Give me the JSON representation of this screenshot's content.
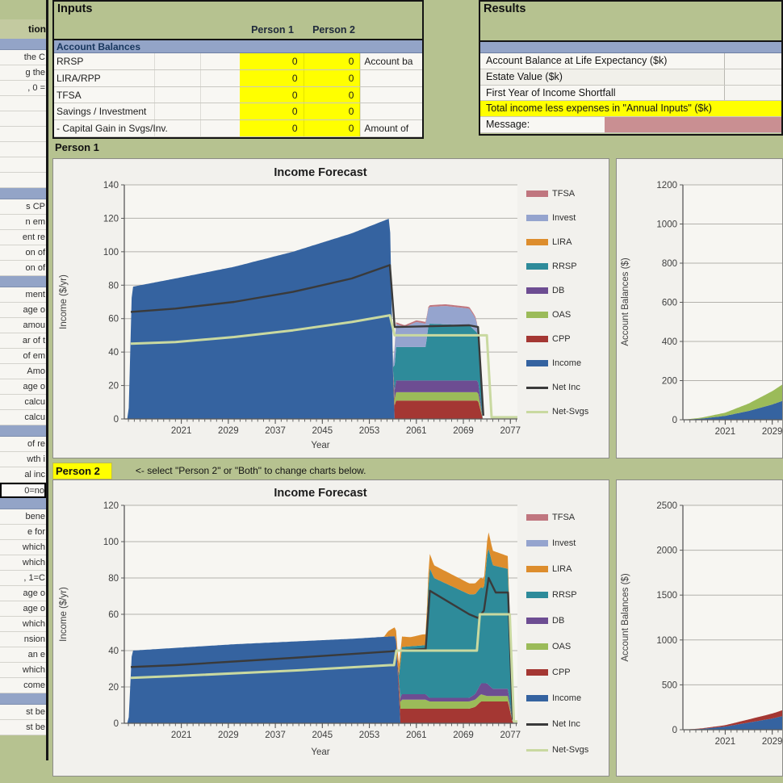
{
  "palette": {
    "page_green": "#b6c290",
    "band_blue": "#93a4c7",
    "input_yellow": "#ffff00",
    "message_pink": "#c98f92",
    "cell_white": "#f8f7f3",
    "table_border": "#141414",
    "grid_line": "#b3b1ac",
    "axis_line": "#5a5a5a"
  },
  "sidebar": {
    "rows": [
      {
        "kind": "green",
        "text": "",
        "h": 24
      },
      {
        "kind": "head",
        "text": "tion",
        "h": 24
      },
      {
        "kind": "band",
        "text": "",
        "h": 14
      },
      {
        "kind": "cell",
        "text": "the C",
        "h": 19
      },
      {
        "kind": "cell",
        "text": "g the",
        "h": 19
      },
      {
        "kind": "cell",
        "text": ", 0 =",
        "h": 19
      },
      {
        "kind": "cell",
        "text": "",
        "h": 19
      },
      {
        "kind": "cell",
        "text": "",
        "h": 19
      },
      {
        "kind": "cell",
        "text": "",
        "h": 19
      },
      {
        "kind": "cell",
        "text": "",
        "h": 19
      },
      {
        "kind": "cell",
        "text": "",
        "h": 19
      },
      {
        "kind": "cell",
        "text": "",
        "h": 19
      },
      {
        "kind": "band",
        "text": "",
        "h": 14
      },
      {
        "kind": "cell",
        "text": "s CP",
        "h": 19
      },
      {
        "kind": "cell",
        "text": "n em",
        "h": 19
      },
      {
        "kind": "cell",
        "text": "ent re",
        "h": 19
      },
      {
        "kind": "cell",
        "text": "on of",
        "h": 19
      },
      {
        "kind": "cell",
        "text": "on of",
        "h": 19
      },
      {
        "kind": "band",
        "text": "",
        "h": 14
      },
      {
        "kind": "cell",
        "text": "ment",
        "h": 19
      },
      {
        "kind": "cell",
        "text": "age o",
        "h": 19
      },
      {
        "kind": "cell",
        "text": "amou",
        "h": 19
      },
      {
        "kind": "cell",
        "text": "ar of t",
        "h": 19
      },
      {
        "kind": "cell",
        "text": "of em",
        "h": 19
      },
      {
        "kind": "cell",
        "text": "Amo",
        "h": 19
      },
      {
        "kind": "cell",
        "text": "age o",
        "h": 19
      },
      {
        "kind": "cell",
        "text": "calcu",
        "h": 19
      },
      {
        "kind": "cell",
        "text": "calcu",
        "h": 19
      },
      {
        "kind": "band",
        "text": "",
        "h": 14
      },
      {
        "kind": "cell",
        "text": "of re",
        "h": 19
      },
      {
        "kind": "cell",
        "text": "wth i",
        "h": 19
      },
      {
        "kind": "cell",
        "text": "al inc",
        "h": 19
      },
      {
        "kind": "sel",
        "text": "0=no",
        "h": 19
      },
      {
        "kind": "band",
        "text": "",
        "h": 14
      },
      {
        "kind": "cell",
        "text": "bene",
        "h": 19
      },
      {
        "kind": "cell",
        "text": "e for",
        "h": 19
      },
      {
        "kind": "cell",
        "text": "which",
        "h": 19
      },
      {
        "kind": "cell",
        "text": "which",
        "h": 19
      },
      {
        "kind": "cell",
        "text": ", 1=C",
        "h": 19
      },
      {
        "kind": "cell",
        "text": "age o",
        "h": 19
      },
      {
        "kind": "cell",
        "text": "age o",
        "h": 19
      },
      {
        "kind": "cell",
        "text": "which",
        "h": 19
      },
      {
        "kind": "cell",
        "text": "nsion",
        "h": 19
      },
      {
        "kind": "cell",
        "text": "an e",
        "h": 19
      },
      {
        "kind": "cell",
        "text": "which",
        "h": 19
      },
      {
        "kind": "cell",
        "text": "come",
        "h": 19
      },
      {
        "kind": "band",
        "text": "",
        "h": 14
      },
      {
        "kind": "cell",
        "text": "st be",
        "h": 19
      },
      {
        "kind": "cell",
        "text": "st be",
        "h": 19
      }
    ]
  },
  "inputs": {
    "title": "Inputs",
    "col_headers": [
      "Person 1",
      "Person 2"
    ],
    "section_header": "Account Balances",
    "rows": [
      {
        "label": "RRSP",
        "p1": "0",
        "p2": "0",
        "note": "Account ba"
      },
      {
        "label": "LIRA/RPP",
        "p1": "0",
        "p2": "0",
        "note": ""
      },
      {
        "label": "TFSA",
        "p1": "0",
        "p2": "0",
        "note": ""
      },
      {
        "label": "Savings / Investment",
        "p1": "0",
        "p2": "0",
        "note": ""
      },
      {
        "label": " - Capital Gain in Svgs/Inv.",
        "p1": "0",
        "p2": "0",
        "note": "Amount of"
      }
    ]
  },
  "results": {
    "title": "Results",
    "rows": [
      {
        "label": "Account Balance at Life Expectancy ($k)",
        "type": "value"
      },
      {
        "label": "Estate Value ($k)",
        "type": "value"
      },
      {
        "label": "First Year of Income Shortfall",
        "type": "value"
      },
      {
        "label": "Total income less expenses in \"Annual Inputs\" ($k)",
        "type": "yellow"
      },
      {
        "label": "Message:",
        "type": "message"
      }
    ]
  },
  "sections": {
    "person1_label": "Person 1",
    "person2_label": "Person 2",
    "person2_note": "<- select \"Person 2\" or \"Both\" to change charts below."
  },
  "legend": [
    {
      "name": "TFSA",
      "color": "#c0767f",
      "line": false
    },
    {
      "name": "Invest",
      "color": "#95a4ce",
      "line": false
    },
    {
      "name": "LIRA",
      "color": "#dd8d2d",
      "line": false
    },
    {
      "name": "RRSP",
      "color": "#2e8b9a",
      "line": false
    },
    {
      "name": "DB",
      "color": "#6d4d92",
      "line": false
    },
    {
      "name": "OAS",
      "color": "#9bbb59",
      "line": false
    },
    {
      "name": "CPP",
      "color": "#a43733",
      "line": false
    },
    {
      "name": "Income",
      "color": "#3563a0",
      "line": false
    },
    {
      "name": "Net Inc",
      "color": "#3a3a3a",
      "line": true
    },
    {
      "name": "Net-Svgs",
      "color": "#c9d9a0",
      "line": true
    }
  ],
  "chart_data": [
    {
      "id": "p1_income",
      "type": "area",
      "title": "Income Forecast",
      "xlabel": "Year",
      "ylabel": "Income ($/yr)",
      "xlim": [
        2011.3,
        2078.2
      ],
      "ylim": [
        0,
        140
      ],
      "x_ticks": [
        2021,
        2029,
        2037,
        2045,
        2053,
        2061,
        2069,
        2077
      ],
      "y_ticks": [
        0,
        20,
        40,
        60,
        80,
        100,
        120,
        140
      ],
      "series": [
        {
          "name": "Income",
          "color": "#3563a0",
          "x": [
            2012.0,
            2012.6,
            2020,
            2030,
            2040,
            2050,
            2056.5,
            2057.2
          ],
          "v": [
            0,
            79,
            84,
            91,
            100,
            111,
            120,
            0
          ]
        },
        {
          "name": "CPP",
          "color": "#a43733",
          "x": [
            2057,
            2057.4,
            2071.5,
            2072.3
          ],
          "v": [
            0,
            11,
            11,
            0
          ]
        },
        {
          "name": "OAS",
          "color": "#9bbb59",
          "x": [
            2057,
            2057.4,
            2071.5,
            2072.3
          ],
          "v": [
            0,
            5,
            5,
            0
          ]
        },
        {
          "name": "DB",
          "color": "#6d4d92",
          "x": [
            2057,
            2057.4,
            2071.5,
            2072.3
          ],
          "v": [
            0,
            7,
            7,
            0
          ]
        },
        {
          "name": "RRSP",
          "color": "#2e8b9a",
          "x": [
            2057,
            2057.4,
            2062.6,
            2063.1,
            2070,
            2071.5,
            2072.3
          ],
          "v": [
            0,
            20,
            20,
            34,
            33,
            28,
            0
          ]
        },
        {
          "name": "Invest",
          "color": "#95a4ce",
          "x": [
            2057,
            2057.4,
            2059,
            2061,
            2062.6,
            2063.1,
            2066,
            2070,
            2071,
            2071.9
          ],
          "v": [
            0,
            14,
            12,
            15,
            14,
            10,
            11,
            10,
            8,
            0
          ]
        },
        {
          "name": "TFSA",
          "color": "#c0767f",
          "x": [
            2057,
            2057.4,
            2071,
            2071.9
          ],
          "v": [
            0,
            1,
            1,
            0
          ]
        }
      ],
      "lines": [
        {
          "name": "Net Inc",
          "color": "#3a3a3a",
          "width": 2.4,
          "x": [
            2012.4,
            2020,
            2030,
            2040,
            2050,
            2056.5,
            2057.3,
            2070,
            2071.5,
            2072.4
          ],
          "v": [
            64,
            66,
            70,
            76,
            84,
            92,
            55,
            56,
            55,
            2
          ]
        },
        {
          "name": "Net-Svgs",
          "color": "#c9d9a0",
          "width": 3,
          "x": [
            2012.4,
            2020,
            2030,
            2040,
            2050,
            2056.5,
            2057.3,
            2071.5,
            2073,
            2073.8,
            2078.2
          ],
          "v": [
            45,
            46,
            49,
            53,
            58,
            62,
            50,
            50,
            50,
            1,
            1
          ]
        }
      ]
    },
    {
      "id": "p2_income",
      "type": "area",
      "title": "Income Forecast",
      "xlabel": "Year",
      "ylabel": "Income ($/yr)",
      "xlim": [
        2011.3,
        2078.2
      ],
      "ylim": [
        0,
        120
      ],
      "x_ticks": [
        2021,
        2029,
        2037,
        2045,
        2053,
        2061,
        2069,
        2077
      ],
      "y_ticks": [
        0,
        20,
        40,
        60,
        80,
        100,
        120
      ],
      "series": [
        {
          "name": "Income",
          "color": "#3563a0",
          "x": [
            2012.0,
            2012.6,
            2030,
            2050,
            2057.5,
            2058.3
          ],
          "v": [
            0,
            40,
            43.5,
            46.5,
            48,
            0
          ]
        },
        {
          "name": "CPP",
          "color": "#a43733",
          "x": [
            2057.5,
            2058.1,
            2070,
            2071,
            2072,
            2076.6,
            2077.4
          ],
          "v": [
            0,
            8,
            8,
            9,
            12,
            12,
            0
          ]
        },
        {
          "name": "OAS",
          "color": "#9bbb59",
          "x": [
            2058,
            2058.4,
            2062.6,
            2063.2,
            2070,
            2072,
            2073,
            2076.6,
            2077.4
          ],
          "v": [
            0,
            5,
            5,
            4,
            4,
            4,
            3,
            3,
            0
          ]
        },
        {
          "name": "DB",
          "color": "#6d4d92",
          "x": [
            2058,
            2058.4,
            2062.6,
            2063.2,
            2070,
            2071,
            2072,
            2073,
            2074,
            2076.6,
            2077.4
          ],
          "v": [
            0,
            3,
            3,
            2,
            2,
            3,
            6,
            7,
            4,
            4,
            0
          ]
        },
        {
          "name": "RRSP",
          "color": "#2e8b9a",
          "x": [
            2058,
            2058.4,
            2062.6,
            2063.2,
            2064,
            2070,
            2071,
            2072.5,
            2073.2,
            2074,
            2076.6,
            2077.4
          ],
          "v": [
            0,
            26,
            27,
            72,
            66,
            57,
            55,
            52,
            76,
            68,
            66,
            0
          ]
        },
        {
          "name": "LIRA",
          "color": "#dd8d2d",
          "x": [
            2055.5,
            2056.2,
            2058,
            2060,
            2062,
            2062.8,
            2063.3,
            2064,
            2070,
            2071,
            2072.5,
            2073.3,
            2074,
            2076.6,
            2077.4
          ],
          "v": [
            0,
            3,
            6,
            5,
            6,
            6,
            8,
            7,
            6,
            6,
            5,
            9,
            8,
            7,
            0
          ]
        }
      ],
      "lines": [
        {
          "name": "Net Inc",
          "color": "#3a3a3a",
          "width": 2.4,
          "x": [
            2012.4,
            2020,
            2040,
            2056.5,
            2058,
            2062.6,
            2063.3,
            2070,
            2071.5,
            2072.5,
            2073.3,
            2074.5,
            2076.6,
            2077.4
          ],
          "v": [
            31,
            32,
            36,
            39.5,
            40,
            41,
            73,
            60,
            58,
            62,
            80,
            72,
            72,
            2
          ]
        },
        {
          "name": "Net-Svgs",
          "color": "#c9d9a0",
          "width": 3,
          "x": [
            2012.4,
            2020,
            2040,
            2056.5,
            2057.2,
            2057.6,
            2071.3,
            2071.8,
            2076.9,
            2077.6,
            2078.2
          ],
          "v": [
            25,
            26,
            29,
            32,
            32,
            40,
            40,
            60,
            60,
            1,
            1
          ]
        }
      ]
    },
    {
      "id": "p1_balance",
      "type": "area",
      "title": "",
      "xlabel": "",
      "ylabel": "Account Balances ($)",
      "xlim": [
        2013.8,
        2067.1
      ],
      "ylim": [
        0,
        1200
      ],
      "x_ticks": [
        2021,
        2029
      ],
      "y_ticks": [
        0,
        200,
        400,
        600,
        800,
        1000,
        1200
      ],
      "series": [
        {
          "name": "blue-area",
          "color": "#3563a0",
          "x": [
            2014,
            2017,
            2021,
            2025,
            2029,
            2032
          ],
          "v": [
            0,
            6,
            20,
            45,
            78,
            110
          ]
        },
        {
          "name": "green-area",
          "color": "#9bbb59",
          "x": [
            2014,
            2017,
            2021,
            2025,
            2029,
            2032
          ],
          "v": [
            0,
            5,
            16,
            38,
            68,
            95
          ]
        }
      ],
      "lines": []
    },
    {
      "id": "p2_balance",
      "type": "area",
      "title": "",
      "xlabel": "",
      "ylabel": "Account Balances ($)",
      "xlim": [
        2013.8,
        2067.1
      ],
      "ylim": [
        0,
        2500
      ],
      "x_ticks": [
        2021,
        2029
      ],
      "y_ticks": [
        0,
        500,
        1000,
        1500,
        2000,
        2500
      ],
      "series": [
        {
          "name": "blue-area",
          "color": "#3563a0",
          "x": [
            2014,
            2017,
            2021,
            2025,
            2029,
            2032
          ],
          "v": [
            0,
            10,
            35,
            80,
            125,
            170
          ]
        },
        {
          "name": "red-area",
          "color": "#a43733",
          "x": [
            2014,
            2017,
            2021,
            2025,
            2029,
            2032
          ],
          "v": [
            0,
            5,
            15,
            35,
            55,
            75
          ]
        }
      ],
      "lines": []
    }
  ]
}
